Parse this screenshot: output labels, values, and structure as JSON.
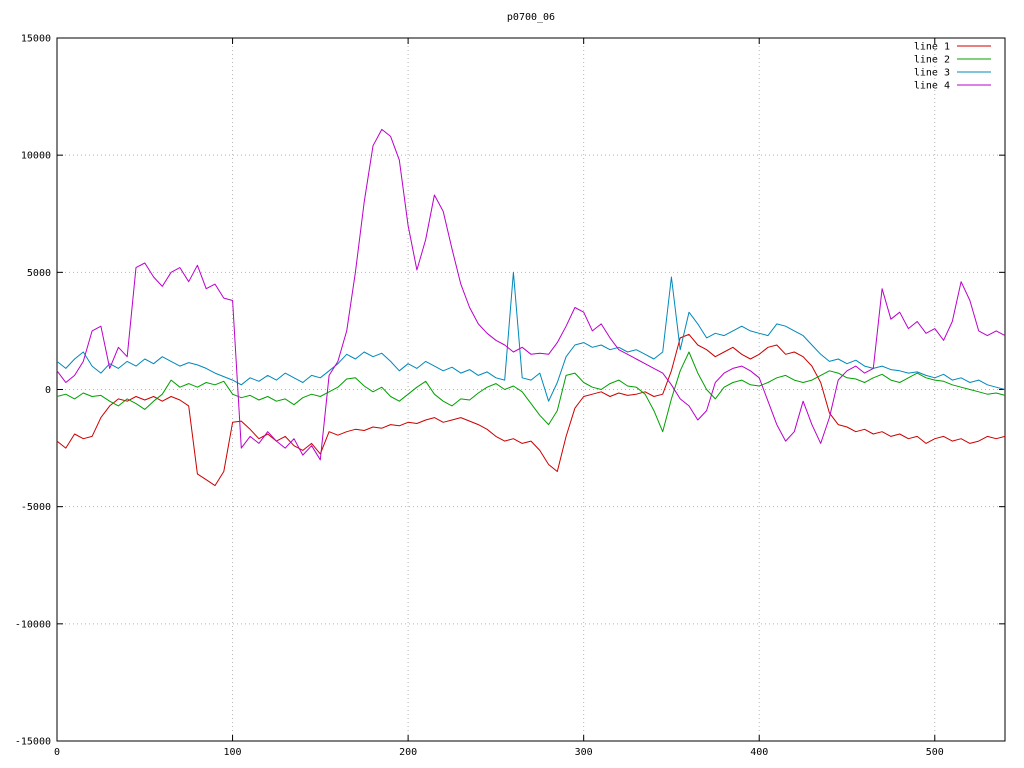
{
  "figure": {
    "background": "#ffffff",
    "border_color": "#000000",
    "grid_color": "#b4b4b4"
  },
  "chart_data": {
    "type": "line",
    "title": "p0700_06",
    "xlabel": "",
    "ylabel": "",
    "xlim": [
      0,
      540
    ],
    "ylim": [
      -15000,
      15000
    ],
    "xticks": [
      0,
      100,
      200,
      300,
      400,
      500
    ],
    "yticks": [
      -15000,
      -10000,
      -5000,
      0,
      5000,
      10000,
      15000
    ],
    "grid": true,
    "grid_style": "dotted",
    "legend_position": "top-right",
    "x_step": 5,
    "series": [
      {
        "name": "line 1",
        "color": "#cc0000",
        "values": [
          -2200,
          -2500,
          -1900,
          -2100,
          -2000,
          -1200,
          -700,
          -400,
          -500,
          -300,
          -450,
          -300,
          -500,
          -300,
          -450,
          -700,
          -3600,
          -3850,
          -4100,
          -3500,
          -1400,
          -1350,
          -1700,
          -2100,
          -1900,
          -2200,
          -2000,
          -2400,
          -2600,
          -2300,
          -2750,
          -1800,
          -1950,
          -1800,
          -1700,
          -1750,
          -1600,
          -1650,
          -1500,
          -1550,
          -1400,
          -1450,
          -1300,
          -1200,
          -1400,
          -1300,
          -1200,
          -1350,
          -1500,
          -1700,
          -2000,
          -2200,
          -2100,
          -2300,
          -2200,
          -2600,
          -3200,
          -3500,
          -2000,
          -800,
          -300,
          -200,
          -100,
          -300,
          -150,
          -250,
          -200,
          -100,
          -300,
          -200,
          800,
          2200,
          2350,
          1900,
          1700,
          1400,
          1600,
          1800,
          1500,
          1300,
          1500,
          1800,
          1900,
          1500,
          1600,
          1400,
          1000,
          300,
          -1000,
          -1500,
          -1600,
          -1800,
          -1700,
          -1900,
          -1800,
          -2000,
          -1900,
          -2100,
          -2000,
          -2300,
          -2100,
          -2000,
          -2200,
          -2100,
          -2300,
          -2200,
          -2000,
          -2100,
          -2000
        ]
      },
      {
        "name": "line 2",
        "color": "#00a000",
        "values": [
          -300,
          -200,
          -400,
          -150,
          -300,
          -250,
          -500,
          -700,
          -400,
          -600,
          -850,
          -500,
          -200,
          400,
          100,
          250,
          100,
          300,
          200,
          350,
          -200,
          -350,
          -250,
          -450,
          -300,
          -500,
          -400,
          -650,
          -350,
          -200,
          -300,
          -100,
          100,
          450,
          500,
          150,
          -100,
          100,
          -300,
          -500,
          -200,
          100,
          350,
          -200,
          -500,
          -700,
          -400,
          -450,
          -150,
          100,
          250,
          0,
          150,
          -100,
          -600,
          -1100,
          -1500,
          -900,
          600,
          700,
          300,
          100,
          0,
          250,
          400,
          150,
          100,
          -200,
          -900,
          -1800,
          -400,
          800,
          1600,
          700,
          0,
          -400,
          100,
          300,
          400,
          200,
          150,
          300,
          500,
          600,
          400,
          300,
          400,
          600,
          800,
          700,
          500,
          450,
          300,
          500,
          650,
          400,
          300,
          500,
          700,
          500,
          400,
          350,
          200,
          100,
          0,
          -100,
          -200,
          -150,
          -250
        ]
      },
      {
        "name": "line 3",
        "color": "#0088bb",
        "values": [
          1200,
          900,
          1300,
          1600,
          1000,
          700,
          1100,
          900,
          1200,
          1000,
          1300,
          1100,
          1400,
          1200,
          1000,
          1150,
          1050,
          900,
          700,
          550,
          400,
          200,
          500,
          350,
          600,
          400,
          700,
          500,
          300,
          600,
          500,
          800,
          1100,
          1500,
          1300,
          1600,
          1400,
          1550,
          1200,
          800,
          1100,
          900,
          1200,
          1000,
          800,
          950,
          700,
          850,
          600,
          750,
          500,
          400,
          5000,
          500,
          400,
          700,
          -500,
          300,
          1400,
          1900,
          2000,
          1800,
          1900,
          1700,
          1800,
          1600,
          1700,
          1500,
          1300,
          1600,
          4800,
          1700,
          3300,
          2800,
          2200,
          2400,
          2300,
          2500,
          2700,
          2500,
          2400,
          2300,
          2800,
          2700,
          2500,
          2300,
          1900,
          1500,
          1200,
          1300,
          1100,
          1250,
          1000,
          900,
          1000,
          850,
          800,
          700,
          750,
          600,
          500,
          650,
          400,
          500,
          300,
          400,
          200,
          100,
          0
        ]
      },
      {
        "name": "line 4",
        "color": "#bb00cc",
        "values": [
          800,
          300,
          600,
          1200,
          2500,
          2700,
          900,
          1800,
          1400,
          5200,
          5400,
          4800,
          4400,
          5000,
          5200,
          4600,
          5300,
          4300,
          4500,
          3900,
          3800,
          -2500,
          -2000,
          -2300,
          -1800,
          -2200,
          -2500,
          -2100,
          -2800,
          -2400,
          -3000,
          600,
          1200,
          2500,
          5000,
          8000,
          10400,
          11100,
          10800,
          9800,
          7000,
          5100,
          6400,
          8300,
          7600,
          6000,
          4500,
          3500,
          2800,
          2400,
          2100,
          1900,
          1600,
          1800,
          1500,
          1550,
          1500,
          2000,
          2700,
          3500,
          3300,
          2500,
          2800,
          2200,
          1700,
          1500,
          1300,
          1100,
          900,
          700,
          200,
          -400,
          -700,
          -1300,
          -900,
          300,
          700,
          900,
          1000,
          800,
          500,
          -500,
          -1500,
          -2200,
          -1800,
          -500,
          -1500,
          -2300,
          -1200,
          400,
          800,
          1000,
          700,
          900,
          4300,
          3000,
          3300,
          2600,
          2900,
          2400,
          2600,
          2100,
          2900,
          4600,
          3800,
          2500,
          2300,
          2500,
          2300
        ]
      }
    ]
  }
}
